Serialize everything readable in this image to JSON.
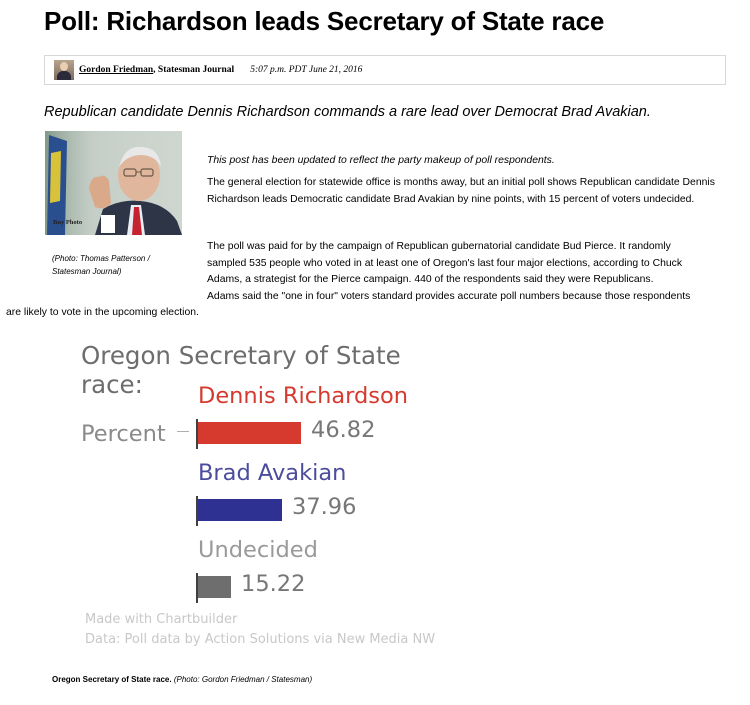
{
  "headline": "Poll: Richardson leads Secretary of State race",
  "byline": {
    "author": "Gordon Friedman",
    "separator": ",",
    "organization": "Statesman Journal",
    "timestamp": "5:07 p.m. PDT June 21, 2016"
  },
  "summary": "Republican candidate Dennis Richardson commands a rare lead over Democrat Brad Avakian.",
  "photo": {
    "caption_line1": "(Photo: Thomas Patterson /",
    "caption_line2": "Statesman Journal)",
    "overlay_text": "Buy Photo"
  },
  "article": {
    "update_note": "This post has been updated to reflect the party makeup of poll respondents.",
    "paragraph1": "The general election for statewide office is months away, but an initial poll shows Republican candidate Dennis Richardson leads Democratic candidate Brad Avakian by nine points, with 15 percent of voters undecided.",
    "paragraph2_lines": [
      "The poll was paid for by the campaign of Republican gubernatorial candidate Bud Pierce. It randomly",
      "sampled 535 people who voted in at least one of Oregon's last four major elections, according to Chuck",
      "Adams, a strategist for the Pierce campaign. 440 of the respondents said they were Republicans.",
      "Adams said the \"one in four\" voters standard provides accurate poll numbers because those respondents"
    ],
    "paragraph2_last": "are likely to vote in the upcoming election."
  },
  "chart_data": {
    "type": "bar",
    "title": "Oregon Secretary of State race:",
    "category_label": "Percent",
    "categories": [
      "Percent"
    ],
    "series": [
      {
        "name": "Dennis Richardson",
        "values": [
          46.82
        ],
        "color": "#d63a2f"
      },
      {
        "name": "Brad Avakian",
        "values": [
          37.96
        ],
        "color": "#2e3192"
      },
      {
        "name": "Undecided",
        "values": [
          15.22
        ],
        "color": "#6e6e6e"
      }
    ],
    "credit_line1": "Made with Chartbuilder",
    "credit_line2": "Data: Poll data by Action Solutions via New Media NW",
    "legend_colors": {
      "Dennis Richardson": "#d63a2f",
      "Brad Avakian": "#4c4c9e",
      "Undecided": "#9a9a9a"
    }
  },
  "chart_caption": {
    "main": "Oregon Secretary of State race.",
    "credit": "(Photo: Gordon Friedman / Statesman)"
  }
}
